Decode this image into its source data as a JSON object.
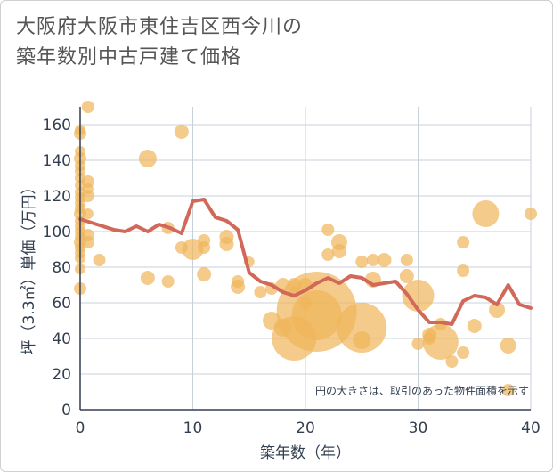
{
  "chart_data": {
    "type": "scatter",
    "title_lines": [
      "大阪府大阪市東住吉区西今川の",
      "築年数別中古戸建て価格"
    ],
    "xlabel": "築年数（年）",
    "ylabel": "坪（3.3㎡）単価（万円）",
    "xlim": [
      0,
      40
    ],
    "ylim": [
      0,
      170
    ],
    "x_ticks": [
      "0",
      "10",
      "20",
      "30",
      "40"
    ],
    "y_ticks": [
      "0",
      "20",
      "40",
      "60",
      "80",
      "100",
      "120",
      "140",
      "160"
    ],
    "note": "円の大きさは、取引のあった物件面積を示す",
    "grid": true,
    "colors": {
      "bubble": "#f0b55a",
      "line": "#d1685a",
      "axis": "#333f50",
      "grid": "#c8d0d8"
    },
    "series": [
      {
        "type": "bubble",
        "points": [
          [
            0,
            157,
            6
          ],
          [
            0,
            155,
            7
          ],
          [
            0,
            145,
            6
          ],
          [
            0,
            141,
            7
          ],
          [
            0,
            137,
            6
          ],
          [
            0,
            134,
            6
          ],
          [
            0,
            130,
            6
          ],
          [
            0,
            126,
            6
          ],
          [
            0,
            122,
            6
          ],
          [
            0,
            119,
            6
          ],
          [
            0,
            116,
            6
          ],
          [
            0,
            113,
            6
          ],
          [
            0,
            110,
            7
          ],
          [
            0,
            106,
            6
          ],
          [
            0,
            103,
            6
          ],
          [
            0,
            100,
            6
          ],
          [
            0,
            97,
            6
          ],
          [
            0,
            94,
            7
          ],
          [
            0,
            91,
            6
          ],
          [
            0,
            88,
            6
          ],
          [
            0,
            85,
            6
          ],
          [
            0,
            79,
            6
          ],
          [
            0,
            68,
            7
          ],
          [
            0.7,
            170,
            7
          ],
          [
            0.7,
            128,
            7
          ],
          [
            0.7,
            124,
            6
          ],
          [
            0.7,
            120,
            7
          ],
          [
            0.7,
            110,
            6
          ],
          [
            0.7,
            98,
            7
          ],
          [
            0.7,
            94,
            7
          ],
          [
            1.7,
            84,
            7
          ],
          [
            6,
            141,
            10
          ],
          [
            6,
            74,
            8
          ],
          [
            7.8,
            72,
            7
          ],
          [
            7.8,
            102,
            7
          ],
          [
            9,
            156,
            8
          ],
          [
            9,
            91,
            7
          ],
          [
            10,
            90,
            12
          ],
          [
            11,
            95,
            7
          ],
          [
            11,
            91,
            7
          ],
          [
            11,
            76,
            8
          ],
          [
            13,
            97,
            8
          ],
          [
            13,
            93,
            8
          ],
          [
            14,
            72,
            7
          ],
          [
            14,
            69,
            8
          ],
          [
            15,
            83,
            6
          ],
          [
            16,
            66,
            7
          ],
          [
            17,
            68,
            7
          ],
          [
            17,
            50,
            10
          ],
          [
            18,
            70,
            8
          ],
          [
            18,
            46,
            10
          ],
          [
            19,
            70,
            8
          ],
          [
            19,
            66,
            7
          ],
          [
            19,
            40,
            25
          ],
          [
            20,
            60,
            7
          ],
          [
            20,
            70,
            8
          ],
          [
            21,
            55,
            45
          ],
          [
            21,
            53,
            28
          ],
          [
            22,
            101,
            7
          ],
          [
            22,
            87,
            7
          ],
          [
            23,
            94,
            9
          ],
          [
            23,
            89,
            8
          ],
          [
            25,
            83,
            7
          ],
          [
            25,
            46,
            28
          ],
          [
            25,
            39,
            10
          ],
          [
            26,
            84,
            7
          ],
          [
            26,
            73,
            9
          ],
          [
            27,
            84,
            8
          ],
          [
            29,
            84,
            7
          ],
          [
            29,
            75,
            8
          ],
          [
            30,
            64,
            18
          ],
          [
            30,
            37,
            7
          ],
          [
            31,
            42,
            8
          ],
          [
            31,
            40,
            7
          ],
          [
            32,
            38,
            20
          ],
          [
            32,
            48,
            7
          ],
          [
            33,
            27,
            7
          ],
          [
            34,
            94,
            7
          ],
          [
            34,
            78,
            7
          ],
          [
            34,
            32,
            7
          ],
          [
            35,
            47,
            8
          ],
          [
            36,
            110,
            15
          ],
          [
            37,
            56,
            9
          ],
          [
            38,
            36,
            9
          ],
          [
            38,
            11,
            7
          ],
          [
            40,
            110,
            7
          ]
        ]
      },
      {
        "type": "line",
        "x": [
          0,
          1,
          2,
          3,
          4,
          5,
          6,
          7,
          8,
          9,
          10,
          11,
          12,
          13,
          14,
          15,
          16,
          17,
          18,
          19,
          20,
          21,
          22,
          23,
          24,
          25,
          26,
          27,
          28,
          29,
          30,
          31,
          32,
          33,
          34,
          35,
          36,
          37,
          38,
          39,
          40
        ],
        "y": [
          107,
          105,
          103,
          101,
          100,
          103,
          100,
          104,
          102,
          99,
          117,
          118,
          108,
          106,
          101,
          77,
          72,
          70,
          66,
          64,
          67,
          71,
          74,
          71,
          75,
          74,
          70,
          71,
          72,
          65,
          56,
          49,
          49,
          48,
          61,
          64,
          63,
          59,
          70,
          59,
          57
        ]
      }
    ]
  }
}
